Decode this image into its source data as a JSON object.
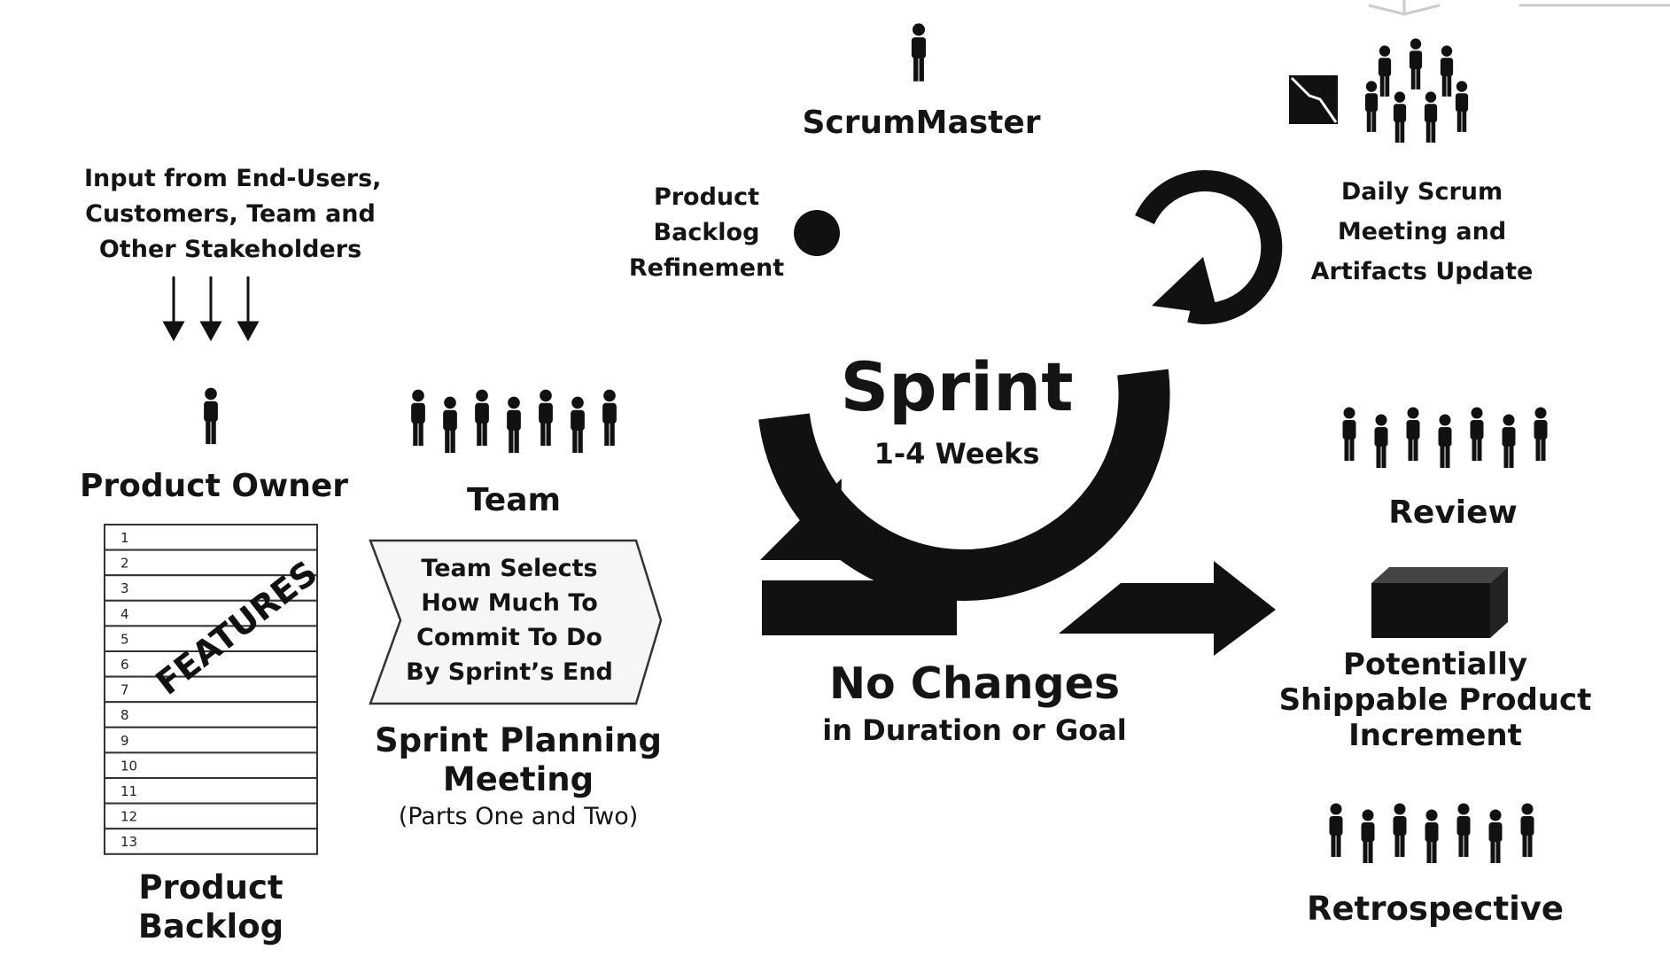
{
  "input": {
    "line1": "Input from End-Users,",
    "line2": "Customers, Team and",
    "line3": "Other Stakeholders"
  },
  "product_owner": {
    "label": "Product Owner"
  },
  "backlog": {
    "rows": [
      "1",
      "2",
      "3",
      "4",
      "5",
      "6",
      "7",
      "8",
      "9",
      "10",
      "11",
      "12",
      "13"
    ],
    "stamp": "FEATURES",
    "label1": "Product",
    "label2": "Backlog"
  },
  "team": {
    "label": "Team"
  },
  "planning": {
    "chevron1": "Team Selects",
    "chevron2": "How Much To",
    "chevron3": "Commit To Do",
    "chevron4": "By Sprint’s End",
    "title1": "Sprint Planning",
    "title2": "Meeting",
    "sub": "(Parts One and Two)"
  },
  "scrummaster": {
    "label": "ScrumMaster"
  },
  "refinement": {
    "line1": "Product",
    "line2": "Backlog",
    "line3": "Refinement"
  },
  "sprint": {
    "title": "Sprint",
    "duration": "1-4 Weeks"
  },
  "no_changes": {
    "title": "No Changes",
    "sub": "in Duration or Goal"
  },
  "daily": {
    "line1": "Daily Scrum",
    "line2": "Meeting and",
    "line3": "Artifacts Update"
  },
  "review": {
    "label": "Review"
  },
  "increment": {
    "line1": "Potentially",
    "line2": "Shippable Product",
    "line3": "Increment"
  },
  "retrospective": {
    "label": "Retrospective"
  },
  "icons": {
    "person": "person-icon",
    "team": "team-icon",
    "crowd": "crowd-icon",
    "box": "product-box-icon",
    "chart": "burndown-chart-icon"
  },
  "colors": {
    "ink": "#111111",
    "page": "#ffffff",
    "logo": "#cccccc"
  }
}
